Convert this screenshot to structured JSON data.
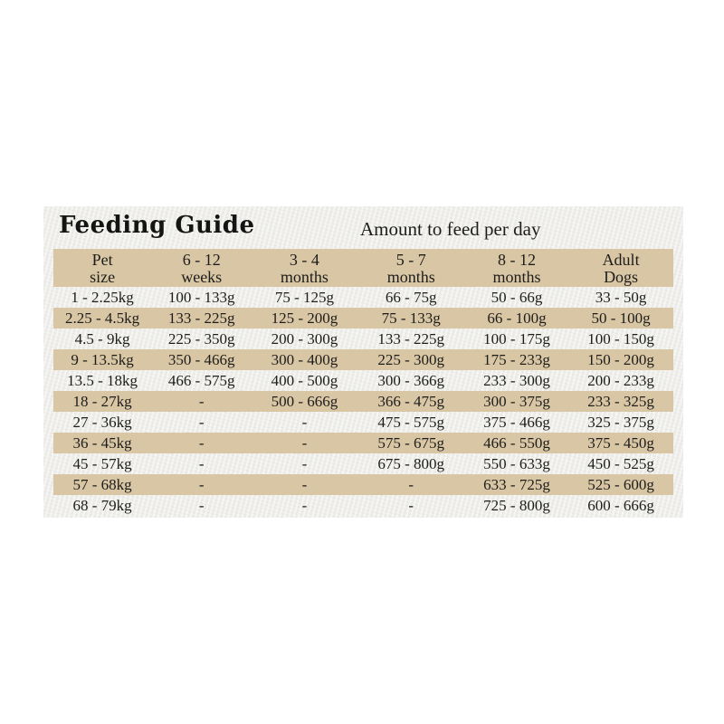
{
  "page": {
    "background_color": "#ffffff",
    "paper_color": "#eeedea",
    "band_color": "#d9c6a4",
    "text_color": "#1d1d1b"
  },
  "header": {
    "title": "Feeding Guide",
    "subtitle": "Amount to feed per day"
  },
  "table": {
    "columns": [
      {
        "line1": "Pet",
        "line2": "size"
      },
      {
        "line1": "6 - 12",
        "line2": "weeks"
      },
      {
        "line1": "3 - 4",
        "line2": "months"
      },
      {
        "line1": "5 - 7",
        "line2": "months"
      },
      {
        "line1": "8 - 12",
        "line2": "months"
      },
      {
        "line1": "Adult",
        "line2": "Dogs"
      }
    ],
    "rows": [
      [
        "1 - 2.25kg",
        "100 - 133g",
        "75 - 125g",
        "66 - 75g",
        "50 - 66g",
        "33 - 50g"
      ],
      [
        "2.25 - 4.5kg",
        "133 - 225g",
        "125 - 200g",
        "75 - 133g",
        "66 - 100g",
        "50 - 100g"
      ],
      [
        "4.5 - 9kg",
        "225 - 350g",
        "200 - 300g",
        "133 - 225g",
        "100 - 175g",
        "100 - 150g"
      ],
      [
        "9 - 13.5kg",
        "350 - 466g",
        "300 - 400g",
        "225 - 300g",
        "175 - 233g",
        "150 - 200g"
      ],
      [
        "13.5 - 18kg",
        "466 - 575g",
        "400 - 500g",
        "300 - 366g",
        "233 - 300g",
        "200 - 233g"
      ],
      [
        "18 - 27kg",
        "-",
        "500 - 666g",
        "366 - 475g",
        "300 - 375g",
        "233 - 325g"
      ],
      [
        "27 - 36kg",
        "-",
        "-",
        "475 - 575g",
        "375 - 466g",
        "325 - 375g"
      ],
      [
        "36 - 45kg",
        "-",
        "-",
        "575 - 675g",
        "466 - 550g",
        "375 - 450g"
      ],
      [
        "45 - 57kg",
        "-",
        "-",
        "675 - 800g",
        "550 - 633g",
        "450 - 525g"
      ],
      [
        "57 - 68kg",
        "-",
        "-",
        "-",
        "633 - 725g",
        "525 - 600g"
      ],
      [
        "68 - 79kg",
        "-",
        "-",
        "-",
        "725 - 800g",
        "600 - 666g"
      ]
    ]
  }
}
